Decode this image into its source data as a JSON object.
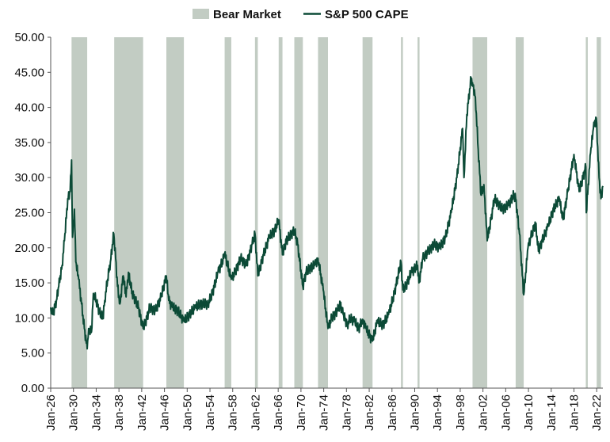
{
  "chart_data": {
    "type": "line",
    "legend": [
      {
        "label": "Bear Market",
        "kind": "area",
        "color": "#c2ccc3"
      },
      {
        "label": "S&P 500 CAPE",
        "kind": "line",
        "color": "#0b4a36"
      }
    ],
    "legend_position": "top-center",
    "ylim": [
      0,
      50
    ],
    "yticks": [
      "0.00",
      "5.00",
      "10.00",
      "15.00",
      "20.00",
      "25.00",
      "30.00",
      "35.00",
      "40.00",
      "45.00",
      "50.00"
    ],
    "x_range": [
      "1926-01",
      "2023-02"
    ],
    "xticks": [
      "Jan-26",
      "Jan-30",
      "Jan-34",
      "Jan-38",
      "Jan-42",
      "Jan-46",
      "Jan-50",
      "Jan-54",
      "Jan-58",
      "Jan-62",
      "Jan-66",
      "Jan-70",
      "Jan-74",
      "Jan-78",
      "Jan-82",
      "Jan-86",
      "Jan-90",
      "Jan-94",
      "Jan-98",
      "Jan-02",
      "Jan-06",
      "Jan-10",
      "Jan-14",
      "Jan-18",
      "Jan-22"
    ],
    "bear_markets": [
      [
        "1929-09",
        "1932-06"
      ],
      [
        "1937-03",
        "1942-04"
      ],
      [
        "1946-05",
        "1949-06"
      ],
      [
        "1956-08",
        "1957-10"
      ],
      [
        "1961-12",
        "1962-06"
      ],
      [
        "1966-02",
        "1966-10"
      ],
      [
        "1968-11",
        "1970-05"
      ],
      [
        "1973-01",
        "1974-10"
      ],
      [
        "1980-11",
        "1982-08"
      ],
      [
        "1987-08",
        "1987-12"
      ],
      [
        "1990-07",
        "1990-10"
      ],
      [
        "2000-03",
        "2002-10"
      ],
      [
        "2007-10",
        "2009-03"
      ],
      [
        "2020-02",
        "2020-03"
      ],
      [
        "2022-01",
        "2022-10"
      ]
    ],
    "grid": false,
    "series": [
      {
        "name": "S&P 500 CAPE",
        "color": "#0b4a36",
        "points": [
          [
            "1926-01",
            11.5
          ],
          [
            "1926-06",
            10.5
          ],
          [
            "1927-01",
            12.5
          ],
          [
            "1927-06",
            14.5
          ],
          [
            "1928-01",
            17.5
          ],
          [
            "1928-06",
            21.0
          ],
          [
            "1929-01",
            27.0
          ],
          [
            "1929-06",
            28.0
          ],
          [
            "1929-09",
            32.5
          ],
          [
            "1929-11",
            21.5
          ],
          [
            "1930-03",
            25.5
          ],
          [
            "1930-06",
            18.0
          ],
          [
            "1930-12",
            15.5
          ],
          [
            "1931-06",
            12.0
          ],
          [
            "1931-12",
            8.5
          ],
          [
            "1932-06",
            5.6
          ],
          [
            "1932-09",
            8.5
          ],
          [
            "1933-03",
            8.0
          ],
          [
            "1933-07",
            13.5
          ],
          [
            "1934-01",
            12.5
          ],
          [
            "1934-07",
            11.0
          ],
          [
            "1935-03",
            10.0
          ],
          [
            "1935-07",
            12.5
          ],
          [
            "1936-01",
            15.5
          ],
          [
            "1936-07",
            18.0
          ],
          [
            "1937-02",
            22.0
          ],
          [
            "1937-06",
            18.5
          ],
          [
            "1937-10",
            14.5
          ],
          [
            "1938-03",
            12.0
          ],
          [
            "1938-10",
            16.0
          ],
          [
            "1939-04",
            13.0
          ],
          [
            "1939-09",
            16.5
          ],
          [
            "1940-05",
            13.5
          ],
          [
            "1940-12",
            12.5
          ],
          [
            "1941-06",
            11.5
          ],
          [
            "1942-04",
            8.5
          ],
          [
            "1942-12",
            10.0
          ],
          [
            "1943-06",
            11.5
          ],
          [
            "1944-06",
            11.0
          ],
          [
            "1945-06",
            13.0
          ],
          [
            "1946-05",
            16.0
          ],
          [
            "1946-10",
            12.5
          ],
          [
            "1947-06",
            11.5
          ],
          [
            "1948-06",
            11.0
          ],
          [
            "1949-06",
            9.5
          ],
          [
            "1950-06",
            10.5
          ],
          [
            "1951-06",
            11.5
          ],
          [
            "1952-06",
            12.0
          ],
          [
            "1953-09",
            12.0
          ],
          [
            "1954-06",
            13.5
          ],
          [
            "1955-06",
            16.5
          ],
          [
            "1956-06",
            18.5
          ],
          [
            "1956-08",
            19.2
          ],
          [
            "1957-10",
            15.5
          ],
          [
            "1958-06",
            16.5
          ],
          [
            "1959-06",
            18.5
          ],
          [
            "1960-06",
            17.5
          ],
          [
            "1961-06",
            20.5
          ],
          [
            "1961-12",
            22.0
          ],
          [
            "1962-06",
            16.0
          ],
          [
            "1963-06",
            19.0
          ],
          [
            "1964-06",
            21.5
          ],
          [
            "1965-06",
            22.5
          ],
          [
            "1966-02",
            24.0
          ],
          [
            "1966-10",
            19.0
          ],
          [
            "1967-06",
            21.0
          ],
          [
            "1968-11",
            22.5
          ],
          [
            "1969-06",
            20.5
          ],
          [
            "1970-05",
            14.5
          ],
          [
            "1970-12",
            16.5
          ],
          [
            "1971-06",
            17.0
          ],
          [
            "1972-06",
            17.5
          ],
          [
            "1973-01",
            18.5
          ],
          [
            "1973-12",
            14.0
          ],
          [
            "1974-10",
            8.5
          ],
          [
            "1975-06",
            10.0
          ],
          [
            "1976-06",
            11.0
          ],
          [
            "1976-12",
            12.0
          ],
          [
            "1977-06",
            10.5
          ],
          [
            "1978-03",
            9.0
          ],
          [
            "1978-09",
            10.0
          ],
          [
            "1979-06",
            9.5
          ],
          [
            "1980-03",
            8.5
          ],
          [
            "1980-11",
            9.8
          ],
          [
            "1981-06",
            8.5
          ],
          [
            "1982-08",
            6.7
          ],
          [
            "1983-06",
            9.5
          ],
          [
            "1984-06",
            9.0
          ],
          [
            "1985-06",
            10.5
          ],
          [
            "1986-06",
            13.5
          ],
          [
            "1987-08",
            18.0
          ],
          [
            "1987-12",
            14.0
          ],
          [
            "1988-06",
            14.5
          ],
          [
            "1989-06",
            16.5
          ],
          [
            "1990-07",
            17.5
          ],
          [
            "1990-10",
            15.0
          ],
          [
            "1991-06",
            18.5
          ],
          [
            "1992-06",
            19.5
          ],
          [
            "1993-06",
            20.5
          ],
          [
            "1994-06",
            20.0
          ],
          [
            "1995-06",
            21.5
          ],
          [
            "1996-06",
            25.0
          ],
          [
            "1997-06",
            30.0
          ],
          [
            "1998-06",
            37.0
          ],
          [
            "1998-09",
            30.0
          ],
          [
            "1999-03",
            39.0
          ],
          [
            "1999-12",
            44.2
          ],
          [
            "2000-03",
            43.5
          ],
          [
            "2000-09",
            41.5
          ],
          [
            "2001-03",
            34.0
          ],
          [
            "2001-09",
            27.5
          ],
          [
            "2002-03",
            29.0
          ],
          [
            "2002-10",
            21.0
          ],
          [
            "2003-06",
            24.0
          ],
          [
            "2004-01",
            27.0
          ],
          [
            "2005-06",
            25.5
          ],
          [
            "2006-06",
            26.0
          ],
          [
            "2007-06",
            27.5
          ],
          [
            "2007-10",
            27.0
          ],
          [
            "2008-06",
            22.0
          ],
          [
            "2009-03",
            13.3
          ],
          [
            "2009-12",
            20.0
          ],
          [
            "2010-06",
            21.5
          ],
          [
            "2011-04",
            23.5
          ],
          [
            "2011-10",
            19.5
          ],
          [
            "2012-06",
            21.0
          ],
          [
            "2013-06",
            23.0
          ],
          [
            "2014-06",
            25.5
          ],
          [
            "2015-06",
            27.0
          ],
          [
            "2016-02",
            24.0
          ],
          [
            "2016-12",
            28.0
          ],
          [
            "2018-01",
            33.3
          ],
          [
            "2018-12",
            28.0
          ],
          [
            "2019-12",
            31.0
          ],
          [
            "2020-02",
            31.5
          ],
          [
            "2020-03",
            25.0
          ],
          [
            "2020-12",
            33.5
          ],
          [
            "2021-06",
            37.0
          ],
          [
            "2021-12",
            38.5
          ],
          [
            "2022-06",
            30.0
          ],
          [
            "2022-10",
            27.0
          ],
          [
            "2023-02",
            28.8
          ]
        ]
      }
    ]
  }
}
